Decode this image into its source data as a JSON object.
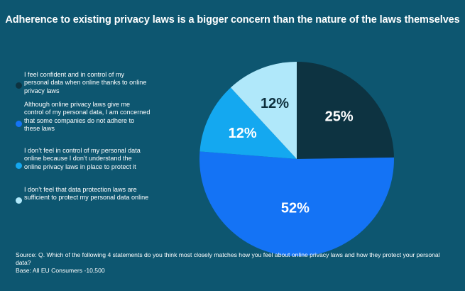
{
  "colors": {
    "background": "#0d5670",
    "slice_confident": "#0d3341",
    "slice_concerned": "#1473f5",
    "slice_not_understand": "#14a8f0",
    "slice_not_sufficient": "#b0e8fa"
  },
  "chart_data": {
    "type": "pie",
    "title": "Adherence to existing privacy laws is a bigger concern than the nature of the laws themselves",
    "legend_position": "left",
    "slices": [
      {
        "label": "I feel confident and in control of my personal data when online thanks to online privacy laws",
        "value": 25,
        "value_label": "25%",
        "color": "#0d3341"
      },
      {
        "label": "Although online privacy laws give me control of my personal data, I am concerned that some companies do not adhere to these laws",
        "value": 52,
        "value_label": "52%",
        "color": "#1473f5"
      },
      {
        "label": "I don’t feel in control of my personal data online because I don’t understand the online privacy laws in place to protect it",
        "value": 12,
        "value_label": "12%",
        "color": "#14a8f0"
      },
      {
        "label": "I don’t feel that data protection laws are sufficient to protect my personal data online",
        "value": 12,
        "value_label": "12%",
        "color": "#b0e8fa"
      }
    ]
  },
  "source": {
    "question": "Source: Q. Which of the following 4 statements do you think most closely matches how you feel about online privacy laws and how they protect your personal data?",
    "base": "Base: All EU Consumers -10,500"
  }
}
